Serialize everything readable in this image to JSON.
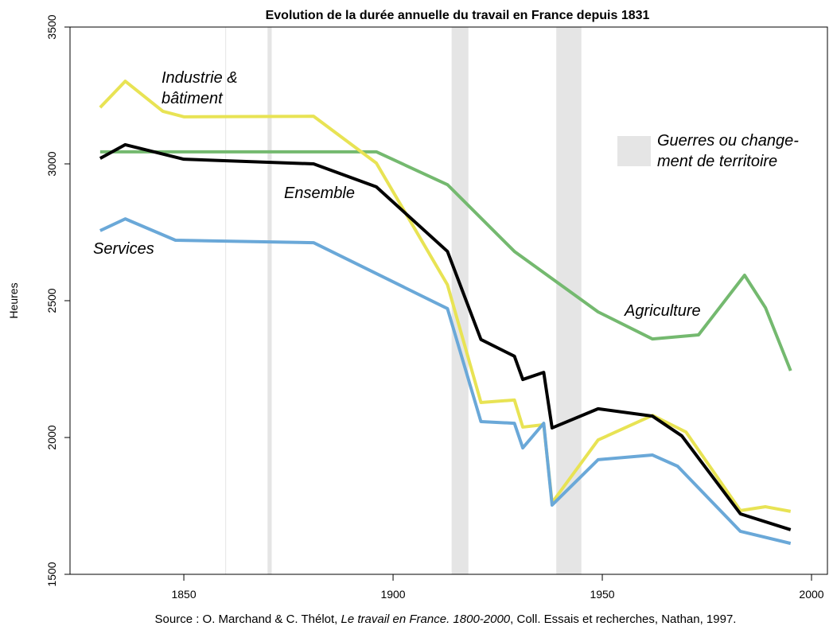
{
  "chart_data": {
    "type": "line",
    "title": "Evolution de la durée annuelle du travail en France depuis 1831",
    "ylabel": "Heures",
    "source": [
      "Source : O. Marchand & C. Thélot, ",
      "Le travail en France. 1800-2000",
      ", Coll. Essais et recherches, Nathan, 1997."
    ],
    "xlim": [
      1822.8,
      2003.8
    ],
    "xticks": [
      1850,
      1900,
      1950,
      2000
    ],
    "ylim": [
      1500,
      3500
    ],
    "yticks": [
      1500,
      2000,
      2500,
      3000,
      3500
    ],
    "bands": [
      [
        1860,
        1860
      ],
      [
        1870,
        1871
      ],
      [
        1914,
        1918
      ],
      [
        1939,
        1945
      ]
    ],
    "bands_color": "#e5e5e5",
    "bands_label": [
      "Guerres ou change-",
      "ment de territoire"
    ],
    "series": [
      {
        "name": "Agriculture",
        "color": "#74b96f",
        "x": [
          1830,
          1896,
          1913,
          1929,
          1949,
          1962,
          1973,
          1984,
          1989,
          1995
        ],
        "values": [
          3044,
          3044,
          2924,
          2680,
          2459,
          2360,
          2375,
          2593,
          2474,
          2244
        ]
      },
      {
        "name": "Industrie & bâtiment",
        "color": "#e8e354",
        "x": [
          1830,
          1836,
          1845,
          1850,
          1881,
          1896,
          1913,
          1921,
          1929,
          1931,
          1936,
          1938,
          1949,
          1962,
          1970,
          1983,
          1989,
          1995
        ],
        "values": [
          3206,
          3302,
          3192,
          3172,
          3174,
          3003,
          2558,
          2128,
          2137,
          2038,
          2047,
          1762,
          1991,
          2081,
          2020,
          1733,
          1747,
          1730
        ]
      },
      {
        "name": "Services",
        "color": "#6aa8d8",
        "x": [
          1830,
          1836,
          1848,
          1881,
          1913,
          1921,
          1929,
          1931,
          1936,
          1938,
          1949,
          1962,
          1968,
          1983,
          1995
        ],
        "values": [
          2756,
          2799,
          2721,
          2712,
          2471,
          2058,
          2052,
          1962,
          2052,
          1753,
          1919,
          1936,
          1895,
          1657,
          1613
        ]
      },
      {
        "name": "Ensemble",
        "color": "#000000",
        "x": [
          1830,
          1836,
          1850,
          1881,
          1896,
          1913,
          1921,
          1929,
          1931,
          1936,
          1938,
          1949,
          1962,
          1969,
          1983,
          1995
        ],
        "values": [
          3020,
          3070,
          3017,
          3000,
          2916,
          2680,
          2358,
          2297,
          2212,
          2238,
          2035,
          2105,
          2078,
          2006,
          1721,
          1663
        ]
      }
    ]
  }
}
